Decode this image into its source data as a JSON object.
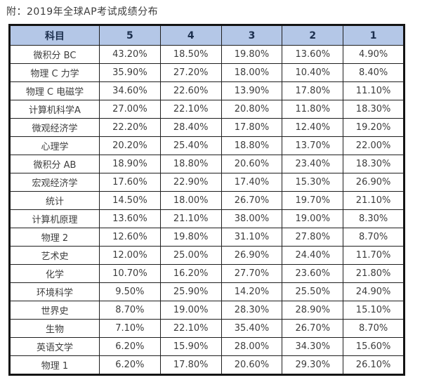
{
  "chart_data": {
    "type": "table",
    "title": "附：2019年全球AP考试成绩分布",
    "columns": [
      "科目",
      "5",
      "4",
      "3",
      "2",
      "1"
    ],
    "rows": [
      {
        "subject": "微积分 BC",
        "scores": [
          "43.20%",
          "18.50%",
          "19.80%",
          "13.60%",
          "4.90%"
        ]
      },
      {
        "subject": "物理 C 力学",
        "scores": [
          "35.90%",
          "27.20%",
          "18.00%",
          "10.40%",
          "8.40%"
        ]
      },
      {
        "subject": "物理 C 电磁学",
        "scores": [
          "34.60%",
          "22.60%",
          "13.90%",
          "17.80%",
          "11.10%"
        ]
      },
      {
        "subject": "计算机科学A",
        "scores": [
          "27.00%",
          "22.10%",
          "20.80%",
          "11.80%",
          "18.30%"
        ]
      },
      {
        "subject": "微观经济学",
        "scores": [
          "22.20%",
          "28.40%",
          "17.80%",
          "12.40%",
          "19.20%"
        ]
      },
      {
        "subject": "心理学",
        "scores": [
          "20.20%",
          "25.40%",
          "18.80%",
          "13.70%",
          "22.00%"
        ]
      },
      {
        "subject": "微积分 AB",
        "scores": [
          "18.90%",
          "18.80%",
          "20.60%",
          "23.40%",
          "18.30%"
        ]
      },
      {
        "subject": "宏观经济学",
        "scores": [
          "17.60%",
          "22.90%",
          "17.40%",
          "15.30%",
          "26.90%"
        ]
      },
      {
        "subject": "统计",
        "scores": [
          "14.50%",
          "18.00%",
          "26.70%",
          "19.70%",
          "21.10%"
        ]
      },
      {
        "subject": "计算机原理",
        "scores": [
          "13.60%",
          "21.10%",
          "38.00%",
          "19.00%",
          "8.30%"
        ]
      },
      {
        "subject": "物理 2",
        "scores": [
          "12.60%",
          "19.80%",
          "31.10%",
          "27.80%",
          "8.70%"
        ]
      },
      {
        "subject": "艺术史",
        "scores": [
          "12.00%",
          "25.00%",
          "26.90%",
          "24.40%",
          "11.70%"
        ]
      },
      {
        "subject": "化学",
        "scores": [
          "10.70%",
          "16.20%",
          "27.70%",
          "23.60%",
          "21.80%"
        ]
      },
      {
        "subject": "环境科学",
        "scores": [
          "9.50%",
          "25.90%",
          "14.20%",
          "25.50%",
          "24.90%"
        ]
      },
      {
        "subject": "世界史",
        "scores": [
          "8.70%",
          "19.00%",
          "28.30%",
          "28.90%",
          "15.10%"
        ]
      },
      {
        "subject": "生物",
        "scores": [
          "7.10%",
          "22.10%",
          "35.40%",
          "26.70%",
          "8.70%"
        ]
      },
      {
        "subject": "英语文学",
        "scores": [
          "6.20%",
          "15.90%",
          "28.00%",
          "34.30%",
          "15.60%"
        ]
      },
      {
        "subject": "物理 1",
        "scores": [
          "6.20%",
          "17.80%",
          "20.60%",
          "29.30%",
          "26.10%"
        ]
      }
    ],
    "layout": {
      "legend": "none",
      "grid": "all-borders"
    }
  },
  "colors": {
    "header_bg": "#b4c7e7",
    "header_text": "#1c2f4e",
    "body_text": "#3d3d3d",
    "border": "#1e1e1e",
    "outer_border": "#141414",
    "page_bg": "#ffffff"
  }
}
